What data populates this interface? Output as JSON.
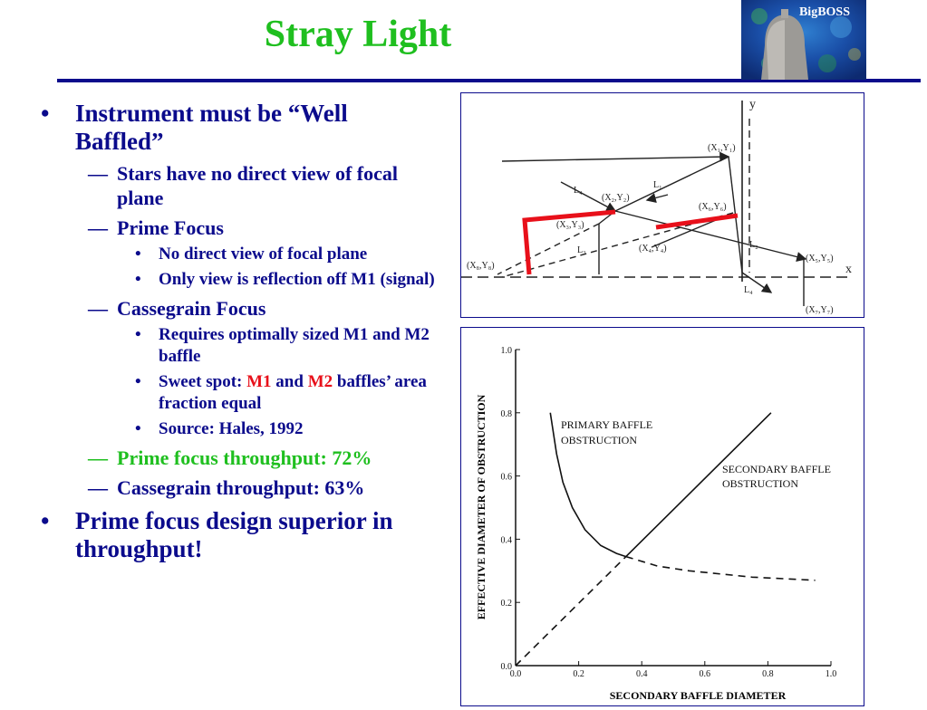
{
  "title": "Stray Light",
  "logo": {
    "label": "BigBOSS"
  },
  "bullets": {
    "b1": "Instrument must be “Well Baffled”",
    "b1_sub1": "Stars have no direct view of focal plane",
    "b1_sub2": "Prime Focus",
    "b1_sub2_i1": "No direct view of focal plane",
    "b1_sub2_i2": "Only view is reflection off M1 (signal)",
    "b1_sub3": "Cassegrain Focus",
    "b1_sub3_i1": "Requires optimally sized M1 and M2 baffle",
    "b1_sub3_i2_pre": "Sweet spot: ",
    "b1_sub3_i2_m1": "M1",
    "b1_sub3_i2_and": " and ",
    "b1_sub3_i2_m2": "M2",
    "b1_sub3_i2_post": " baffles’ area fraction equal",
    "b1_sub3_i3": "Source: Hales, 1992",
    "b1_sub4": "Prime focus throughput: 72%",
    "b1_sub5": "Cassegrain throughput: 63%",
    "b2": "Prime focus design superior in throughput!"
  },
  "markers": {
    "dot": "•",
    "dash": "—"
  },
  "colors": {
    "title": "#1fbf1f",
    "text": "#0b0b8c",
    "highlight_red": "#e8101a",
    "baffle_red": "#e8101a"
  },
  "diagram": {
    "axis_y": "y",
    "axis_x": "x",
    "p1": "(X₁,Y₁)",
    "p2": "(X₂,Y₂)",
    "p3": "(X₃,Y₃)",
    "p4": "(X₄,Y₄)",
    "p5": "(X₅,Y₅)",
    "p6": "(X₆,Y₆)",
    "p7": "(X₇,Y₇)",
    "p8": "(X₈,Y₈)",
    "L1": "L₁",
    "L2": "L₂",
    "L3": "L₃",
    "L4a": "L₄",
    "L4b": "L₄"
  },
  "chart_data": {
    "type": "line",
    "xlabel": "SECONDARY BAFFLE DIAMETER",
    "ylabel": "EFFECTIVE DIAMETER OF OBSTRUCTION",
    "xlim": [
      0,
      1.0
    ],
    "ylim": [
      0,
      1.0
    ],
    "xticks": [
      "0.0",
      "0.2",
      "0.4",
      "0.6",
      "0.8",
      "1.0"
    ],
    "yticks": [
      "0.0",
      "0.2",
      "0.4",
      "0.6",
      "0.8",
      "1.0"
    ],
    "series": [
      {
        "name": "PRIMARY BAFFLE OBSTRUCTION",
        "style": "solid-then-dashed",
        "x": [
          0.11,
          0.13,
          0.15,
          0.18,
          0.22,
          0.27,
          0.32,
          0.35,
          0.45,
          0.55,
          0.65,
          0.75,
          0.85,
          0.95
        ],
        "y": [
          0.8,
          0.67,
          0.58,
          0.5,
          0.43,
          0.38,
          0.355,
          0.345,
          0.315,
          0.3,
          0.29,
          0.28,
          0.275,
          0.27
        ]
      },
      {
        "name": "SECONDARY BAFFLE OBSTRUCTION",
        "style": "dashed-then-solid",
        "x": [
          0.0,
          0.35,
          0.81
        ],
        "y": [
          0.0,
          0.345,
          0.8
        ]
      }
    ],
    "annotations": [
      "PRIMARY BAFFLE",
      "OBSTRUCTION",
      "SECONDARY BAFFLE",
      "OBSTRUCTION"
    ]
  }
}
